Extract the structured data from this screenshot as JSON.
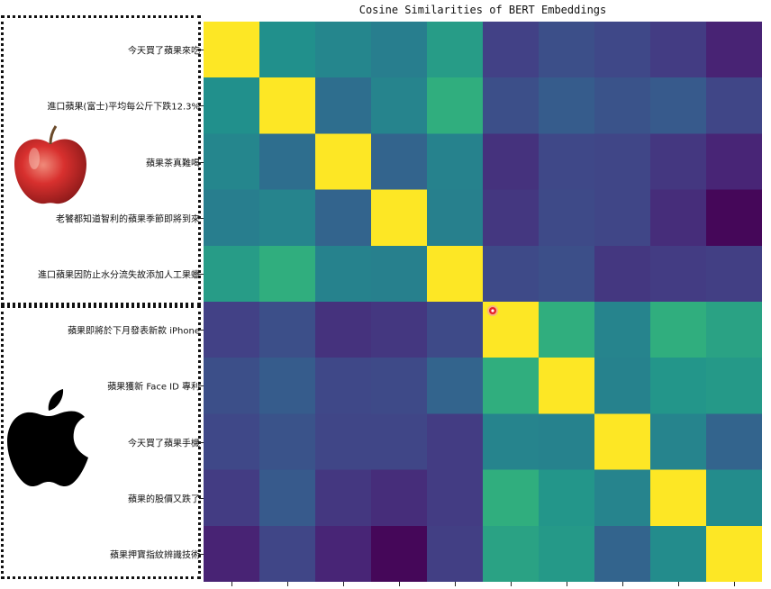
{
  "chart_data": {
    "type": "heatmap",
    "title": "Cosine Similarities of BERT Embeddings",
    "colormap": "viridis",
    "vmin": 0,
    "vmax": 1,
    "labels": [
      "今天買了蘋果來吃",
      "進口蘋果(富士)平均每公斤下跌12.3%",
      "蘋果茶真難喝",
      "老饕都知道智利的蘋果季節即將到來",
      "進口蘋果因防止水分流失故添加人工果蠟",
      "蘋果即將於下月發表新款 iPhone",
      "蘋果獲新 Face ID 專利",
      "今天買了蘋果手機",
      "蘋果的股價又跌了",
      "蘋果押寶指紋辨識技術"
    ],
    "matrix": [
      [
        1.0,
        0.62,
        0.57,
        0.53,
        0.66,
        0.24,
        0.3,
        0.27,
        0.22,
        0.12
      ],
      [
        0.62,
        1.0,
        0.45,
        0.56,
        0.72,
        0.3,
        0.36,
        0.32,
        0.35,
        0.26
      ],
      [
        0.57,
        0.45,
        1.0,
        0.4,
        0.55,
        0.18,
        0.27,
        0.26,
        0.2,
        0.13
      ],
      [
        0.53,
        0.56,
        0.4,
        1.0,
        0.54,
        0.2,
        0.28,
        0.26,
        0.16,
        0.02
      ],
      [
        0.66,
        0.72,
        0.55,
        0.54,
        1.0,
        0.28,
        0.3,
        0.2,
        0.22,
        0.23
      ],
      [
        0.24,
        0.3,
        0.18,
        0.2,
        0.28,
        1.0,
        0.72,
        0.56,
        0.72,
        0.68
      ],
      [
        0.3,
        0.36,
        0.27,
        0.28,
        0.4,
        0.72,
        1.0,
        0.55,
        0.64,
        0.65
      ],
      [
        0.27,
        0.32,
        0.26,
        0.26,
        0.22,
        0.56,
        0.55,
        1.0,
        0.56,
        0.4
      ],
      [
        0.22,
        0.35,
        0.2,
        0.16,
        0.22,
        0.72,
        0.64,
        0.56,
        1.0,
        0.6
      ],
      [
        0.12,
        0.26,
        0.13,
        0.02,
        0.23,
        0.68,
        0.65,
        0.4,
        0.6,
        1.0
      ]
    ],
    "grid": false
  },
  "colors": {
    "marker": "#e8202a",
    "apple_fruit": "#d8302e",
    "apple_logo": "#000000"
  },
  "icons": {
    "fruit": "red-apple-fruit-icon",
    "logo": "apple-company-logo-icon"
  }
}
